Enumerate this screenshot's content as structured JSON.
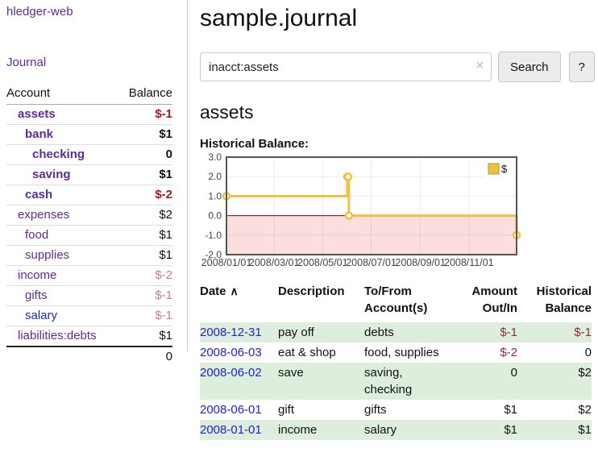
{
  "app": {
    "brand": "hledger-web",
    "nav_journal": "Journal"
  },
  "sidebar": {
    "header": {
      "account": "Account",
      "balance": "Balance"
    },
    "accounts": [
      {
        "name": "assets",
        "depth": 1,
        "balance": "$-1",
        "bold": true,
        "neg": "strong"
      },
      {
        "name": "bank",
        "depth": 2,
        "balance": "$1",
        "bold": true
      },
      {
        "name": "checking",
        "depth": 3,
        "balance": "0",
        "bold": true
      },
      {
        "name": "saving",
        "depth": 3,
        "balance": "$1",
        "bold": true
      },
      {
        "name": "cash",
        "depth": 2,
        "balance": "$-2",
        "bold": true,
        "neg": "strong"
      },
      {
        "name": "expenses",
        "depth": 1,
        "balance": "$2"
      },
      {
        "name": "food",
        "depth": 2,
        "balance": "$1"
      },
      {
        "name": "supplies",
        "depth": 2,
        "balance": "$1"
      },
      {
        "name": "income",
        "depth": 1,
        "balance": "$-2",
        "neg": "soft"
      },
      {
        "name": "gifts",
        "depth": 2,
        "balance": "$-1",
        "neg": "soft"
      },
      {
        "name": "salary",
        "depth": 2,
        "balance": "$-1",
        "neg": "soft",
        "link": "blue"
      },
      {
        "name": "liabilities:debts",
        "depth": 1,
        "balance": "$1"
      }
    ],
    "total": "0"
  },
  "header": {
    "title": "sample.journal"
  },
  "search": {
    "query": "inacct:assets",
    "clear_icon": "×",
    "button": "Search",
    "help": "?"
  },
  "account_page": {
    "title": "assets",
    "chart_label": "Historical Balance:"
  },
  "chart_data": {
    "type": "line",
    "title": "Historical Balance",
    "steps": true,
    "series": [
      {
        "name": "$",
        "color": "#EDC240",
        "points": [
          {
            "date": "2008/01/01",
            "day": 0,
            "value": 1
          },
          {
            "date": "2008/06/01",
            "day": 152,
            "value": 2
          },
          {
            "date": "2008/06/02",
            "day": 153,
            "value": 2
          },
          {
            "date": "2008/06/03",
            "day": 154,
            "value": 0
          },
          {
            "date": "2008/12/31",
            "day": 365,
            "value": -1
          }
        ]
      }
    ],
    "ylim": [
      -2,
      3
    ],
    "yticks": [
      {
        "v": 3,
        "label": "3.0"
      },
      {
        "v": 2,
        "label": "2.0"
      },
      {
        "v": 1,
        "label": "1.0"
      },
      {
        "v": 0,
        "label": "0.0"
      },
      {
        "v": -1,
        "label": "-1.0"
      },
      {
        "v": -2,
        "label": "-2.0"
      }
    ],
    "xticks": [
      {
        "day": 0,
        "label": "2008/01/01"
      },
      {
        "day": 60,
        "label": "2008/03/01"
      },
      {
        "day": 121,
        "label": "2008/05/01"
      },
      {
        "day": 182,
        "label": "2008/07/01"
      },
      {
        "day": 244,
        "label": "2008/09/01"
      },
      {
        "day": 305,
        "label": "2008/11/01"
      }
    ],
    "x_max_day": 365,
    "grid": true,
    "legend": {
      "label": "$",
      "position": "top-right"
    },
    "colors": {
      "line": "#EDC240",
      "marker_fill": "#ffffff",
      "negative_region": "#fbdede",
      "zero_line": "#8b0000",
      "border": "#545454",
      "tick_text": "#444444"
    }
  },
  "register": {
    "columns": {
      "date": "Date",
      "sort_indicator": "∧",
      "description": "Description",
      "accounts": "To/From Account(s)",
      "amount": "Amount Out/In",
      "balance": "Historical Balance"
    },
    "rows": [
      {
        "date": "2008-12-31",
        "description": "pay off",
        "accounts": "debts",
        "amount": "$-1",
        "amount_neg": true,
        "balance": "$-1",
        "balance_neg": true
      },
      {
        "date": "2008-06-03",
        "description": "eat & shop",
        "accounts": "food, supplies",
        "amount": "$-2",
        "amount_neg": true,
        "balance": "0",
        "balance_neg": false
      },
      {
        "date": "2008-06-02",
        "description": "save",
        "accounts": "saving, checking",
        "amount": "0",
        "amount_neg": false,
        "balance": "$2",
        "balance_neg": false
      },
      {
        "date": "2008-06-01",
        "description": "gift",
        "accounts": "gifts",
        "amount": "$1",
        "amount_neg": false,
        "balance": "$2",
        "balance_neg": false
      },
      {
        "date": "2008-01-01",
        "description": "income",
        "accounts": "salary",
        "amount": "$1",
        "amount_neg": false,
        "balance": "$1",
        "balance_neg": false
      }
    ]
  }
}
